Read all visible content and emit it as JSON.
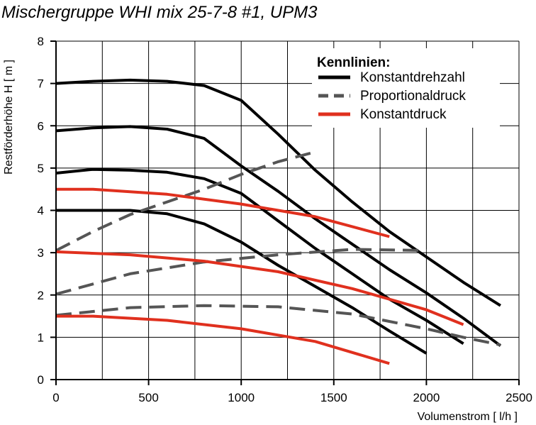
{
  "chart_data": {
    "type": "line",
    "title": "Mischergruppe WHI mix 25-7-8 #1, UPM3",
    "xlabel": "Volumenstrom [ l/h ]",
    "ylabel": "Restförderhöhe H [ m ]",
    "xlim": [
      0,
      2500
    ],
    "ylim": [
      0,
      8
    ],
    "xticks": [
      "0",
      "500",
      "1000",
      "1500",
      "2000",
      "2500"
    ],
    "yticks": [
      "0",
      "1",
      "2",
      "3",
      "4",
      "5",
      "6",
      "7",
      "8"
    ],
    "grid": true,
    "legend": {
      "title": "Kennlinien:",
      "placement": "top-right",
      "entries": [
        {
          "label": "Konstantdrehzahl",
          "group": "konstantdrehzahl"
        },
        {
          "label": "Proportionaldruck",
          "group": "proportionaldruck"
        },
        {
          "label": "Konstantdruck",
          "group": "konstantdruck"
        }
      ]
    },
    "styles": {
      "konstantdrehzahl": {
        "color": "#000000",
        "dash": "none"
      },
      "proportionaldruck": {
        "color": "#555555",
        "dash": "dashed"
      },
      "konstantdruck": {
        "color": "#e0301e",
        "dash": "none"
      }
    },
    "series": [
      {
        "group": "konstantdrehzahl",
        "points": [
          [
            0,
            7.0
          ],
          [
            200,
            7.05
          ],
          [
            400,
            7.08
          ],
          [
            600,
            7.05
          ],
          [
            800,
            6.95
          ],
          [
            1000,
            6.6
          ],
          [
            1200,
            5.8
          ],
          [
            1400,
            4.95
          ],
          [
            1600,
            4.2
          ],
          [
            1800,
            3.5
          ],
          [
            2000,
            2.9
          ],
          [
            2200,
            2.3
          ],
          [
            2400,
            1.75
          ]
        ]
      },
      {
        "group": "konstantdrehzahl",
        "points": [
          [
            0,
            5.88
          ],
          [
            200,
            5.95
          ],
          [
            400,
            5.98
          ],
          [
            600,
            5.92
          ],
          [
            800,
            5.7
          ],
          [
            1000,
            5.05
          ],
          [
            1200,
            4.45
          ],
          [
            1400,
            3.8
          ],
          [
            1600,
            3.2
          ],
          [
            1800,
            2.6
          ],
          [
            2000,
            2.05
          ],
          [
            2200,
            1.45
          ],
          [
            2400,
            0.8
          ]
        ]
      },
      {
        "group": "konstantdrehzahl",
        "points": [
          [
            0,
            4.88
          ],
          [
            200,
            4.97
          ],
          [
            400,
            4.95
          ],
          [
            600,
            4.9
          ],
          [
            800,
            4.75
          ],
          [
            1000,
            4.4
          ],
          [
            1200,
            3.75
          ],
          [
            1400,
            3.1
          ],
          [
            1600,
            2.5
          ],
          [
            1800,
            1.9
          ],
          [
            2000,
            1.4
          ],
          [
            2200,
            0.85
          ]
        ]
      },
      {
        "group": "konstantdrehzahl",
        "points": [
          [
            0,
            4.0
          ],
          [
            200,
            4.0
          ],
          [
            400,
            4.0
          ],
          [
            600,
            3.92
          ],
          [
            800,
            3.68
          ],
          [
            1000,
            3.25
          ],
          [
            1200,
            2.7
          ],
          [
            1400,
            2.2
          ],
          [
            1600,
            1.7
          ],
          [
            1800,
            1.15
          ],
          [
            2000,
            0.62
          ]
        ]
      },
      {
        "group": "proportionaldruck",
        "points": [
          [
            0,
            3.05
          ],
          [
            200,
            3.5
          ],
          [
            400,
            3.9
          ],
          [
            600,
            4.2
          ],
          [
            800,
            4.5
          ],
          [
            1000,
            4.85
          ],
          [
            1200,
            5.15
          ],
          [
            1400,
            5.38
          ]
        ]
      },
      {
        "group": "proportionaldruck",
        "points": [
          [
            0,
            2.02
          ],
          [
            400,
            2.5
          ],
          [
            800,
            2.78
          ],
          [
            1200,
            2.95
          ],
          [
            1600,
            3.08
          ],
          [
            2000,
            3.05
          ]
        ]
      },
      {
        "group": "proportionaldruck",
        "points": [
          [
            0,
            1.52
          ],
          [
            400,
            1.7
          ],
          [
            800,
            1.75
          ],
          [
            1200,
            1.72
          ],
          [
            1600,
            1.55
          ],
          [
            2000,
            1.2
          ],
          [
            2200,
            1.0
          ],
          [
            2400,
            0.82
          ]
        ]
      },
      {
        "group": "konstantdruck",
        "points": [
          [
            0,
            4.5
          ],
          [
            200,
            4.5
          ],
          [
            600,
            4.38
          ],
          [
            1000,
            4.15
          ],
          [
            1400,
            3.85
          ],
          [
            1800,
            3.38
          ]
        ]
      },
      {
        "group": "konstantdruck",
        "points": [
          [
            0,
            3.02
          ],
          [
            400,
            2.95
          ],
          [
            800,
            2.8
          ],
          [
            1200,
            2.55
          ],
          [
            1600,
            2.15
          ],
          [
            2000,
            1.65
          ],
          [
            2200,
            1.3
          ]
        ]
      },
      {
        "group": "konstantdruck",
        "points": [
          [
            0,
            1.5
          ],
          [
            200,
            1.5
          ],
          [
            600,
            1.4
          ],
          [
            1000,
            1.2
          ],
          [
            1400,
            0.9
          ],
          [
            1800,
            0.38
          ]
        ]
      }
    ]
  }
}
